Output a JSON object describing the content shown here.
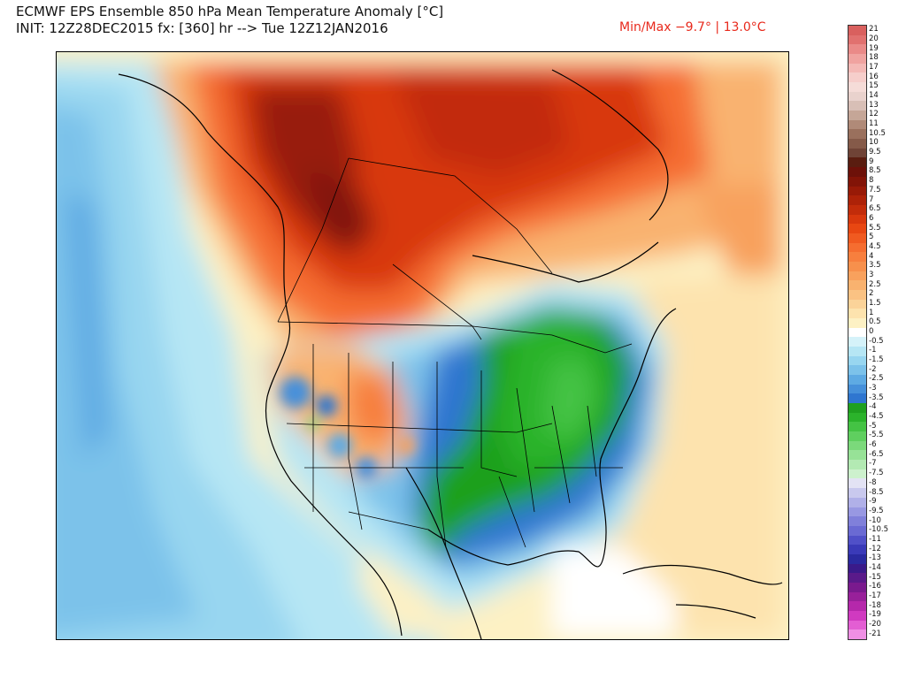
{
  "header": {
    "title_line1": "ECMWF EPS Ensemble 850 hPa Mean Temperature Anomaly [°C]",
    "title_line2": "INIT: 12Z28DEC2015 fx: [360] hr --> Tue 12Z12JAN2016",
    "minmax": "Min/Max −9.7° | 13.0°C"
  },
  "legend": {
    "levels": [
      {
        "label": "21",
        "color": "#d9605e"
      },
      {
        "label": "20",
        "color": "#e1716f"
      },
      {
        "label": "19",
        "color": "#ea8a88"
      },
      {
        "label": "18",
        "color": "#f0a3a0"
      },
      {
        "label": "17",
        "color": "#f4b9b6"
      },
      {
        "label": "16",
        "color": "#f6cecb"
      },
      {
        "label": "15",
        "color": "#f5dcd8"
      },
      {
        "label": "14",
        "color": "#e9d2cd"
      },
      {
        "label": "13",
        "color": "#d8bfb6"
      },
      {
        "label": "12",
        "color": "#c5a697"
      },
      {
        "label": "11",
        "color": "#b08a78"
      },
      {
        "label": "10.5",
        "color": "#9a705d"
      },
      {
        "label": "10",
        "color": "#855a49"
      },
      {
        "label": "9.5",
        "color": "#6f4336"
      },
      {
        "label": "9",
        "color": "#5a1d10"
      },
      {
        "label": "8.5",
        "color": "#6d1109"
      },
      {
        "label": "8",
        "color": "#821407"
      },
      {
        "label": "7.5",
        "color": "#981a07"
      },
      {
        "label": "7",
        "color": "#ad2208"
      },
      {
        "label": "6.5",
        "color": "#c22c0a"
      },
      {
        "label": "6",
        "color": "#d8380d"
      },
      {
        "label": "5.5",
        "color": "#e84712"
      },
      {
        "label": "5",
        "color": "#f05a20"
      },
      {
        "label": "4.5",
        "color": "#f56d30"
      },
      {
        "label": "4",
        "color": "#f77f3e"
      },
      {
        "label": "3.5",
        "color": "#f7904c"
      },
      {
        "label": "3",
        "color": "#f8a15d"
      },
      {
        "label": "2.5",
        "color": "#f9b26f"
      },
      {
        "label": "2",
        "color": "#fac283"
      },
      {
        "label": "1.5",
        "color": "#fbd399"
      },
      {
        "label": "1",
        "color": "#fde3ae"
      },
      {
        "label": "0.5",
        "color": "#fdf1c4"
      },
      {
        "label": "0",
        "color": "#ffffff"
      },
      {
        "label": "-0.5",
        "color": "#d5f2f9"
      },
      {
        "label": "-1",
        "color": "#b6e6f4"
      },
      {
        "label": "-1.5",
        "color": "#98d6f0"
      },
      {
        "label": "-2",
        "color": "#7cc2ea"
      },
      {
        "label": "-2.5",
        "color": "#5eaae3"
      },
      {
        "label": "-3",
        "color": "#4690da"
      },
      {
        "label": "-3.5",
        "color": "#2f76d0"
      },
      {
        "label": "-4",
        "color": "#1fa01f"
      },
      {
        "label": "-4.5",
        "color": "#2bb32b"
      },
      {
        "label": "-5",
        "color": "#44c344"
      },
      {
        "label": "-5.5",
        "color": "#5fcf5f"
      },
      {
        "label": "-6",
        "color": "#7bd97b"
      },
      {
        "label": "-6.5",
        "color": "#97e297"
      },
      {
        "label": "-7",
        "color": "#b3eab3"
      },
      {
        "label": "-7.5",
        "color": "#cdf1cd"
      },
      {
        "label": "-8",
        "color": "#e3e3f4"
      },
      {
        "label": "-8.5",
        "color": "#c9c9ee"
      },
      {
        "label": "-9",
        "color": "#b0b0e8"
      },
      {
        "label": "-9.5",
        "color": "#9898e2"
      },
      {
        "label": "-10",
        "color": "#8080da"
      },
      {
        "label": "-10.5",
        "color": "#6a6ad3"
      },
      {
        "label": "-11",
        "color": "#5050c8"
      },
      {
        "label": "-12",
        "color": "#3a3ab8"
      },
      {
        "label": "-13",
        "color": "#2a2aa0"
      },
      {
        "label": "-14",
        "color": "#3a1a8a"
      },
      {
        "label": "-15",
        "color": "#5a1a8a"
      },
      {
        "label": "-16",
        "color": "#7a1a8e"
      },
      {
        "label": "-17",
        "color": "#98209a"
      },
      {
        "label": "-18",
        "color": "#b528ab"
      },
      {
        "label": "-19",
        "color": "#d03ac0"
      },
      {
        "label": "-20",
        "color": "#e35ed3"
      },
      {
        "label": "-21",
        "color": "#ef8fe4"
      }
    ]
  }
}
